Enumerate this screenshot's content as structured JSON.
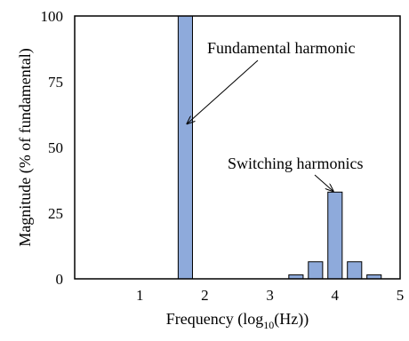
{
  "chart_data": {
    "type": "bar",
    "xlabel": "Frequency (log10(Hz))",
    "xlabel_parts": {
      "pre": "Frequency (log",
      "sub": "10",
      "post": "(Hz))"
    },
    "ylabel": "Magnitude (% of fundamental)",
    "xlim": [
      0,
      5
    ],
    "ylim": [
      0,
      100
    ],
    "x_ticks": [
      1,
      2,
      3,
      4,
      5
    ],
    "y_ticks": [
      0,
      25,
      50,
      75,
      100
    ],
    "bar_width": 0.22,
    "bar_color": "#8eaadb",
    "bar_edge_color": "#000000",
    "x": [
      1.7,
      3.4,
      3.7,
      4.0,
      4.3,
      4.6
    ],
    "values": [
      100,
      1.5,
      6.5,
      33,
      6.5,
      1.5
    ],
    "grid": false,
    "annotations": [
      {
        "text": "Fundamental harmonic",
        "target_x": 1.7,
        "target_y": 59
      },
      {
        "text": "Switching harmonics",
        "target_x": 4.0,
        "target_y": 33
      }
    ]
  }
}
